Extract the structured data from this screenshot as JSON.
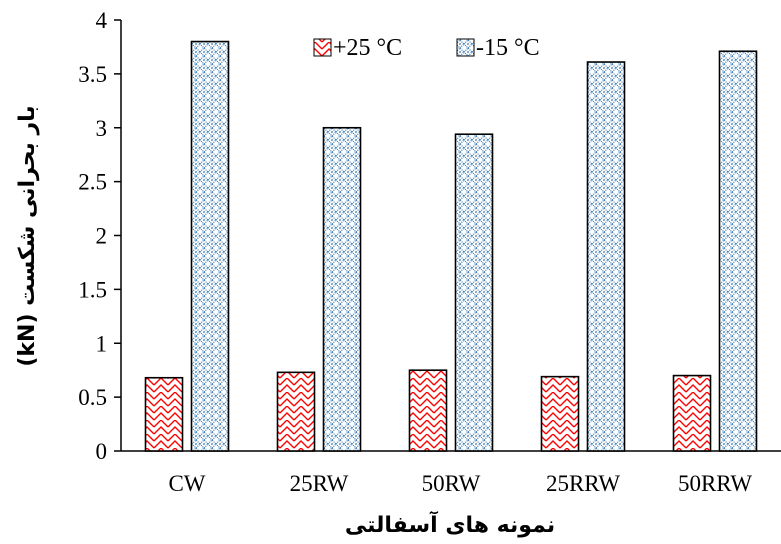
{
  "chart_data": {
    "type": "bar",
    "categories": [
      "CW",
      "25RW",
      "50RW",
      "25RRW",
      "50RRW"
    ],
    "series": [
      {
        "name": "+25 °C",
        "values": [
          0.68,
          0.73,
          0.75,
          0.69,
          0.7
        ],
        "color": "#ff0000",
        "pattern": "red-zigzag-hatch"
      },
      {
        "name": "-15 °C",
        "values": [
          3.8,
          3.0,
          2.94,
          3.61,
          3.71
        ],
        "color": "#2e75b6",
        "pattern": "blue-dotted-diamond"
      }
    ],
    "title": "",
    "xlabel": "نمونه های آسفالتی",
    "ylabel": "بار بحرانی شکست  (kN)",
    "ylim": [
      0,
      4
    ],
    "yticks": [
      "0",
      "0.5",
      "1",
      "1.5",
      "2",
      "2.5",
      "3",
      "3.5",
      "4"
    ],
    "legend_position": "top-center",
    "grid": false
  }
}
